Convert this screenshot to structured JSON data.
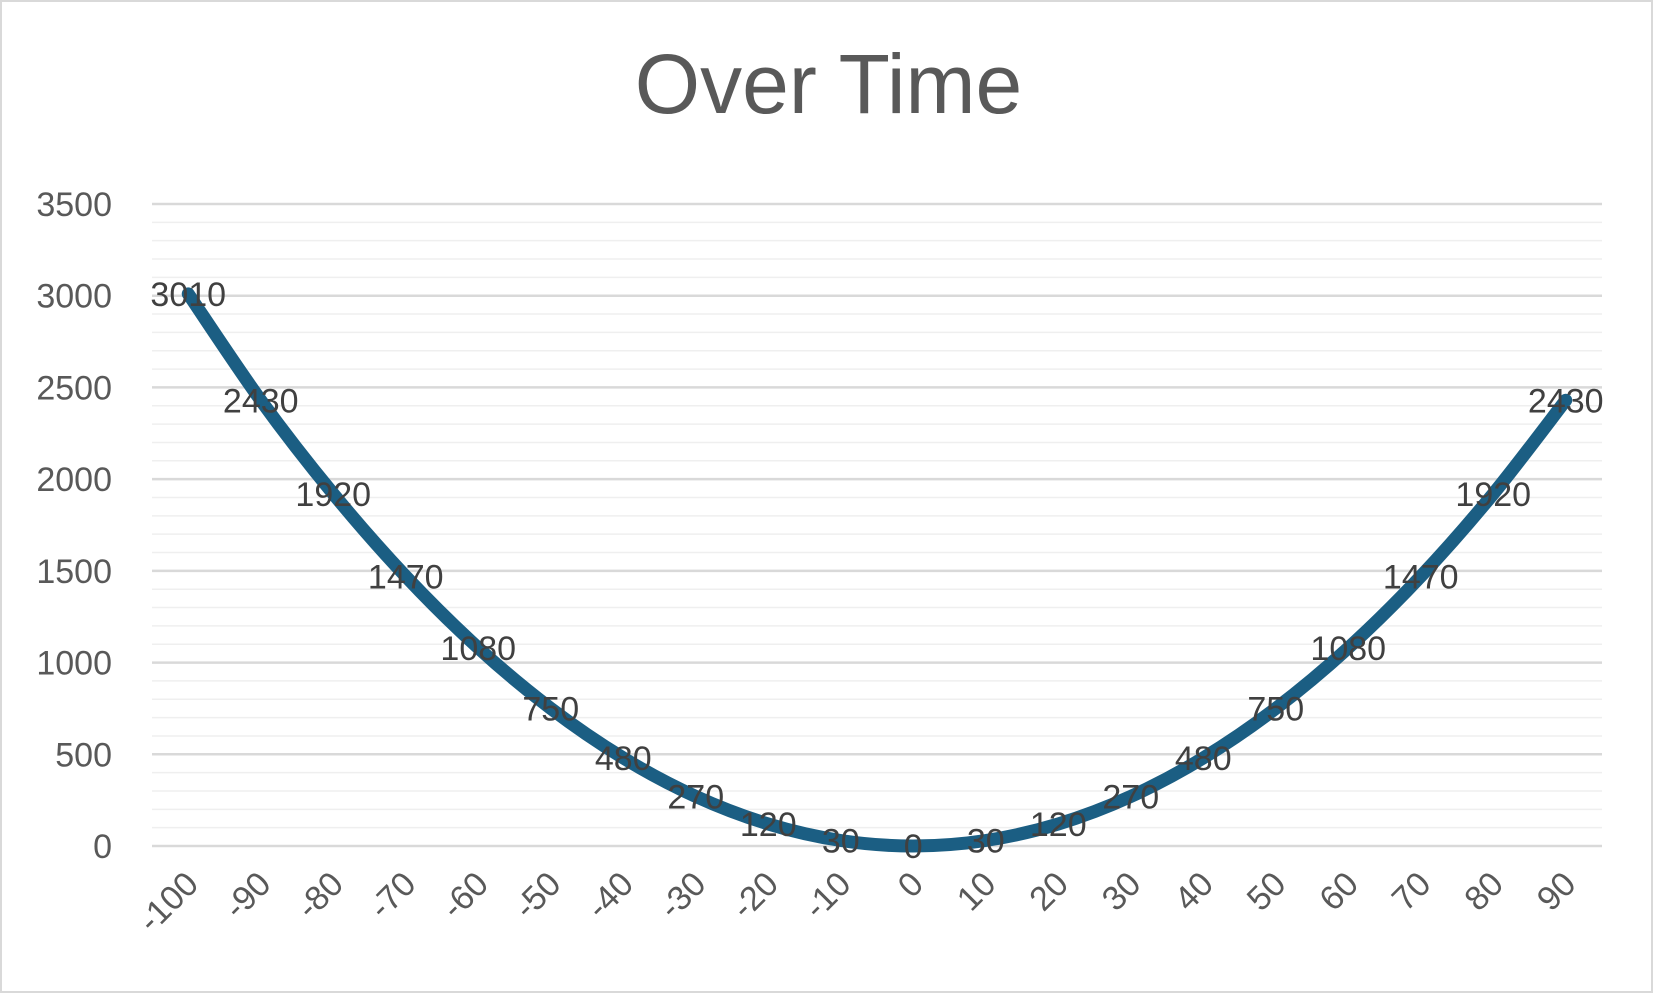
{
  "chart_data": {
    "type": "line",
    "title": "Over Time",
    "xlabel": "",
    "ylabel": "",
    "categories": [
      "-100",
      "-90",
      "-80",
      "-70",
      "-60",
      "-50",
      "-40",
      "-30",
      "-20",
      "-10",
      "0",
      "10",
      "20",
      "30",
      "40",
      "50",
      "60",
      "70",
      "80",
      "90"
    ],
    "series": [
      {
        "values": [
          3010,
          2430,
          1920,
          1470,
          1080,
          750,
          480,
          270,
          120,
          30,
          0,
          30,
          120,
          270,
          480,
          750,
          1080,
          1470,
          1920,
          2430
        ]
      }
    ],
    "y_ticks": [
      "0",
      "500",
      "1000",
      "1500",
      "2000",
      "2500",
      "3000",
      "3500"
    ],
    "ylim": [
      0,
      3500
    ],
    "grid": true,
    "minor_grid": true,
    "legend": "none",
    "data_labels": true,
    "colors": {
      "line": "#1b5e83",
      "major_grid": "#d9d9d9",
      "minor_grid": "#efefef",
      "axis": "#d9d9d9",
      "text": "#595959"
    }
  }
}
